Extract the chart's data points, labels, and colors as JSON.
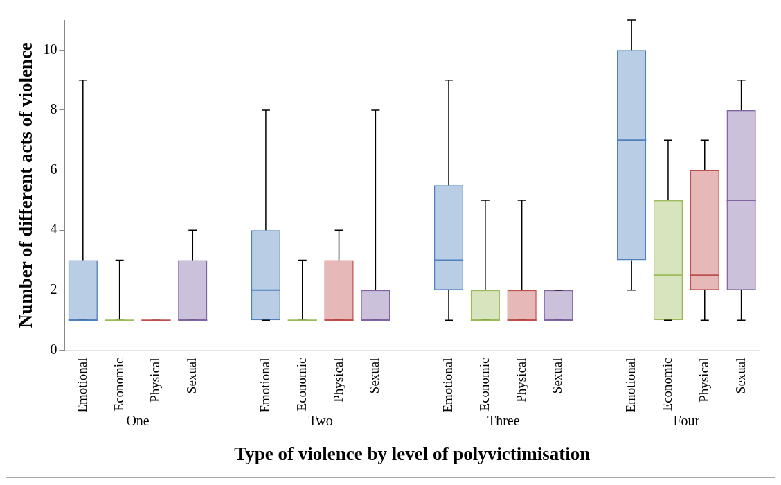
{
  "chart_data": {
    "type": "box",
    "xlabel": "Type of violence by level of polyvictimisation",
    "ylabel": "Number of different acts of violence",
    "categories": [
      "Emotional",
      "Economic",
      "Physical",
      "Sexual",
      null,
      "Emotional",
      "Economic",
      "Physical",
      "Sexual",
      null,
      "Emotional",
      "Economic",
      "Physical",
      "Sexual",
      null,
      "Emotional",
      "Economic",
      "Physical",
      "Sexual"
    ],
    "annotations": [
      "One",
      "Two",
      "Three",
      "Four"
    ],
    "colors": [
      "#4f81bd",
      "#9bbb59",
      "#c0504d",
      "#8064a2",
      null,
      "#4f81bd",
      "#9bbb59",
      "#c0504d",
      "#8064a2",
      null,
      "#4f81bd",
      "#9bbb59",
      "#c0504d",
      "#8064a2",
      null,
      "#4f81bd",
      "#9bbb59",
      "#c0504d",
      "#8064a2"
    ],
    "boxes": [
      {
        "low": 1,
        "q1": 1,
        "median": 1,
        "q3": 3,
        "high": 9
      },
      {
        "low": 1,
        "q1": 1,
        "median": 1,
        "q3": 1,
        "high": 3
      },
      {
        "low": 1,
        "q1": 1,
        "median": 1,
        "q3": 1,
        "high": 1
      },
      {
        "low": 1,
        "q1": 1,
        "median": 1,
        "q3": 3,
        "high": 4
      },
      null,
      {
        "low": 1,
        "q1": 1,
        "median": 2,
        "q3": 4,
        "high": 8
      },
      {
        "low": 1,
        "q1": 1,
        "median": 1,
        "q3": 1,
        "high": 3
      },
      {
        "low": 1,
        "q1": 1,
        "median": 1,
        "q3": 3,
        "high": 4
      },
      {
        "low": 1,
        "q1": 1,
        "median": 1,
        "q3": 2,
        "high": 8
      },
      null,
      {
        "low": 1,
        "q1": 2,
        "median": 3,
        "q3": 5.5,
        "high": 9
      },
      {
        "low": 1,
        "q1": 1,
        "median": 1,
        "q3": 2,
        "high": 5
      },
      {
        "low": 1,
        "q1": 1,
        "median": 1,
        "q3": 2,
        "high": 5
      },
      {
        "low": 1,
        "q1": 1,
        "median": 1,
        "q3": 2,
        "high": 2
      },
      null,
      {
        "low": 2,
        "q1": 3,
        "median": 7,
        "q3": 10,
        "high": 11
      },
      {
        "low": 1,
        "q1": 1,
        "median": 2.5,
        "q3": 5,
        "high": 7
      },
      {
        "low": 1,
        "q1": 2,
        "median": 2.5,
        "q3": 6,
        "high": 7
      },
      {
        "low": 1,
        "q1": 2,
        "median": 5,
        "q3": 8,
        "high": 9
      }
    ],
    "ylim": [
      0,
      11
    ],
    "yticks": [
      0,
      2,
      4,
      6,
      8,
      10
    ],
    "legend": false
  }
}
